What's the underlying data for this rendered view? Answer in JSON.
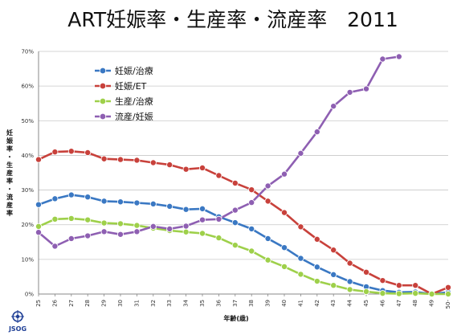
{
  "chart_data": {
    "type": "line",
    "title": "ART妊娠率・生産率・流産率　2011",
    "ylabel": "妊娠率・生産率・流産率",
    "xlabel": "年齢(歳)",
    "x": [
      "25",
      "26",
      "27",
      "28",
      "29",
      "30",
      "31",
      "32",
      "33",
      "34",
      "35",
      "36",
      "37",
      "38",
      "39",
      "40",
      "41",
      "42",
      "43",
      "44",
      "45",
      "46",
      "47",
      "48",
      "49",
      "50-"
    ],
    "ylim": [
      0,
      70
    ],
    "yticks": [
      0,
      10,
      20,
      30,
      40,
      50,
      60,
      70
    ],
    "ytick_labels": [
      "0%",
      "10%",
      "20%",
      "30%",
      "40%",
      "50%",
      "60%",
      "70%"
    ],
    "grid": true,
    "legend_position": "top-left",
    "series": [
      {
        "name": "妊娠/治療",
        "color": "#3a78c3",
        "values": [
          25.8,
          27.5,
          28.6,
          28.0,
          26.8,
          26.6,
          26.3,
          26.0,
          25.3,
          24.4,
          24.6,
          22.3,
          20.6,
          18.8,
          16.0,
          13.4,
          10.3,
          7.8,
          5.6,
          3.6,
          2.1,
          1.0,
          0.5,
          0.6,
          0.0,
          0.5
        ]
      },
      {
        "name": "妊娠/ET",
        "color": "#c8413b",
        "values": [
          38.8,
          41.0,
          41.2,
          40.8,
          39.0,
          38.8,
          38.6,
          37.9,
          37.3,
          36.0,
          36.4,
          34.2,
          32.0,
          30.1,
          26.8,
          23.5,
          19.4,
          15.8,
          12.7,
          8.9,
          6.3,
          3.9,
          2.5,
          2.5,
          0.0,
          1.9
        ]
      },
      {
        "name": "生産/治療",
        "color": "#9ed04a",
        "values": [
          19.5,
          21.6,
          21.8,
          21.4,
          20.5,
          20.3,
          19.8,
          19.0,
          18.3,
          17.9,
          17.5,
          16.2,
          14.1,
          12.4,
          9.8,
          7.9,
          5.7,
          3.7,
          2.5,
          1.3,
          0.7,
          0.2,
          0.1,
          0.2,
          0.0,
          0.0
        ]
      },
      {
        "name": "流産/妊娠",
        "color": "#8e5fb2",
        "values": [
          17.8,
          13.8,
          16.0,
          16.8,
          18.0,
          17.2,
          18.0,
          19.5,
          18.8,
          19.6,
          21.4,
          21.6,
          24.2,
          26.4,
          31.2,
          34.6,
          40.6,
          46.8,
          54.2,
          58.2,
          59.2,
          67.8,
          68.5,
          null,
          null,
          null
        ]
      }
    ]
  },
  "logo": {
    "text": "JSOG",
    "color": "#1f3f96"
  }
}
